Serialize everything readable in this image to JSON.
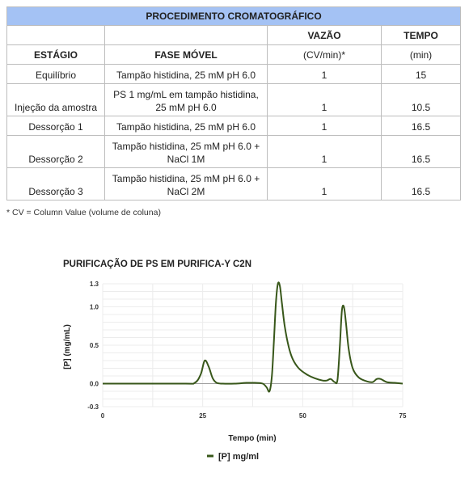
{
  "table": {
    "title": "PROCEDIMENTO CROMATOGRÁFICO",
    "headers": {
      "stage": "ESTÁGIO",
      "mobile_phase": "FASE MÓVEL",
      "flow_top": "VAZÃO",
      "flow_bottom": "(CV/min)*",
      "time_top": "TEMPO",
      "time_bottom": "(min)"
    },
    "rows": [
      {
        "stage": "Equilíbrio",
        "phase": "Tampão histidina, 25 mM pH 6.0",
        "flow": "1",
        "time": "15"
      },
      {
        "stage": "Injeção da amostra",
        "phase": "PS 1 mg/mL em tampão histidina, 25 mM pH 6.0",
        "flow": "1",
        "time": "10.5"
      },
      {
        "stage": "Dessorção 1",
        "phase": "Tampão histidina, 25 mM pH 6.0",
        "flow": "1",
        "time": "16.5"
      },
      {
        "stage": "Dessorção 2",
        "phase": "Tampão histidina, 25 mM pH 6.0 + NaCl 1M",
        "flow": "1",
        "time": "16.5"
      },
      {
        "stage": "Dessorção 3",
        "phase": "Tampão histidina, 25 mM pH 6.0 + NaCl 2M",
        "flow": "1",
        "time": "16.5"
      }
    ]
  },
  "footnote": "* CV = Column Value (volume de coluna)",
  "chart_data": {
    "type": "line",
    "title": "PURIFICAÇÃO DE PS EM PURIFICA-Y C2N",
    "xlabel": "Tempo (min)",
    "ylabel": "[P] (mg/mL)",
    "xlim": [
      0,
      75
    ],
    "ylim": [
      -0.3,
      1.3
    ],
    "xticks": [
      "0",
      "25",
      "50",
      "75"
    ],
    "yticks": [
      "1.3",
      "1.0",
      "0.5",
      "0.0",
      "-0.3"
    ],
    "grid": true,
    "legend_position": "bottom",
    "line_color": "#38571a",
    "series": [
      {
        "name": "[P] mg/ml",
        "x": [
          0,
          20,
          23,
          24.5,
          25.5,
          26.5,
          27.5,
          28.5,
          30,
          33,
          36,
          38,
          40,
          41,
          41.7,
          42.3,
          42.8,
          43.3,
          43.8,
          44.3,
          44.8,
          45.5,
          46.5,
          47.5,
          49,
          51,
          53,
          55,
          56,
          57,
          58,
          58.7,
          59.3,
          59.8,
          60.3,
          60.8,
          61.5,
          62.5,
          64,
          66,
          67.5,
          68.5,
          69.5,
          71,
          73,
          75
        ],
        "y": [
          0,
          0,
          0.01,
          0.12,
          0.3,
          0.22,
          0.07,
          0.01,
          0,
          0,
          0.01,
          0.01,
          0,
          -0.05,
          -0.1,
          0.1,
          0.55,
          1.05,
          1.3,
          1.27,
          1.05,
          0.75,
          0.48,
          0.32,
          0.2,
          0.12,
          0.07,
          0.04,
          0.04,
          0.06,
          0.02,
          0.05,
          0.5,
          0.95,
          1.0,
          0.8,
          0.45,
          0.2,
          0.08,
          0.03,
          0.02,
          0.06,
          0.06,
          0.02,
          0.01,
          0
        ]
      }
    ]
  }
}
